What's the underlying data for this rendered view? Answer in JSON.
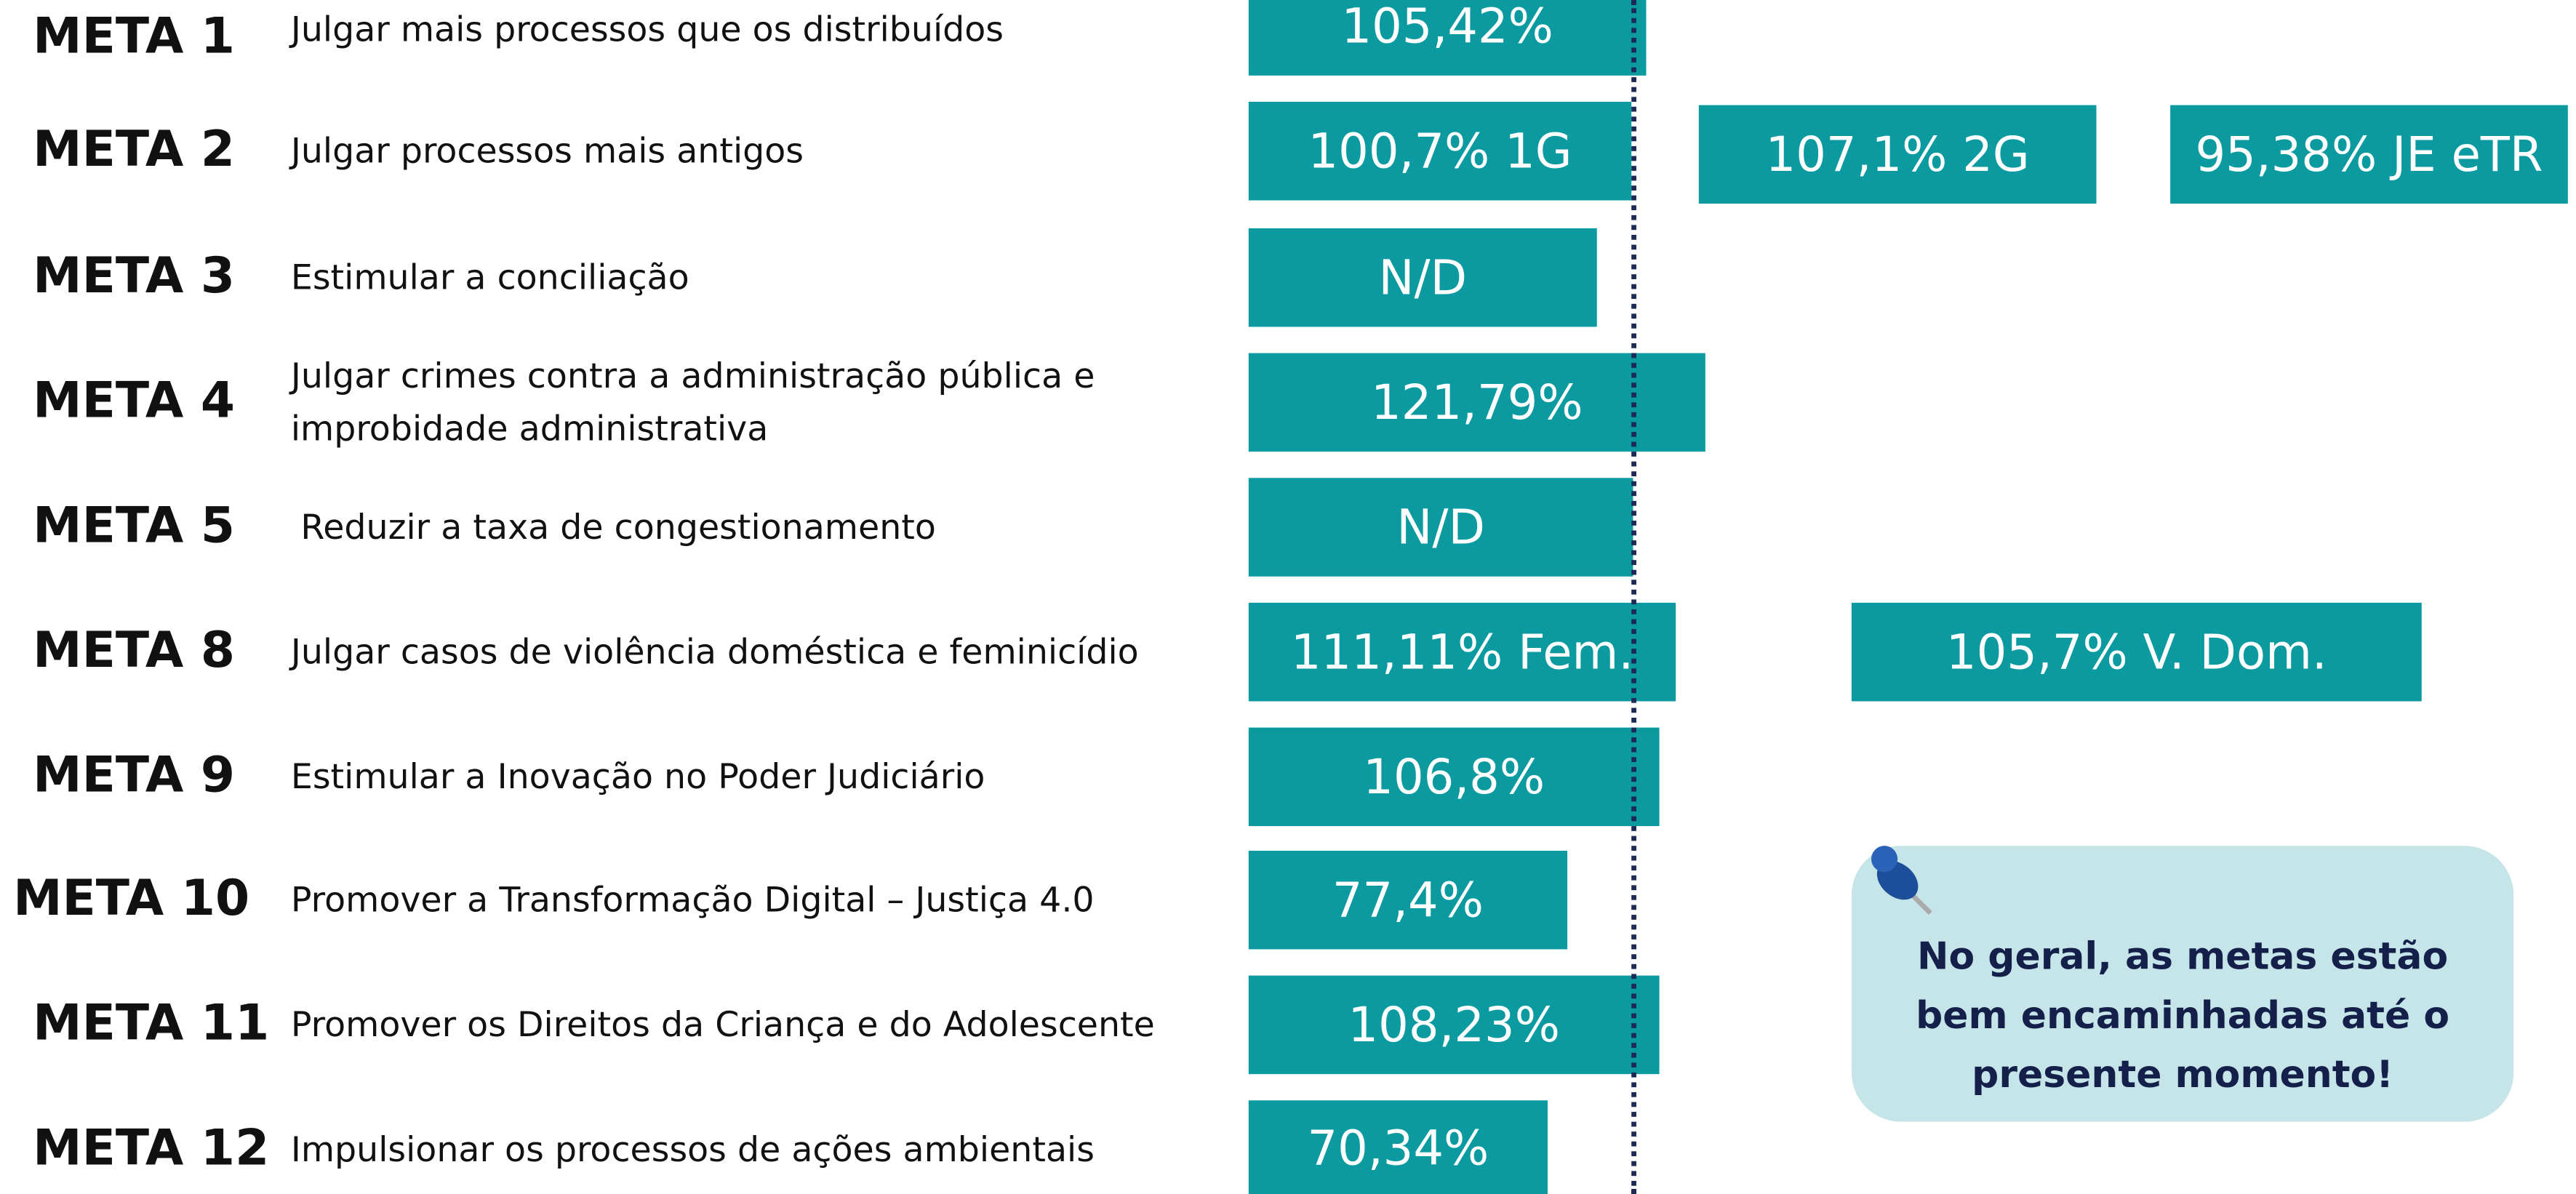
{
  "rows": [
    {
      "meta": "META 1",
      "description": "Julgar mais processos que os distribuídos",
      "badges": [
        "105,42%"
      ]
    },
    {
      "meta": "META 2",
      "description": "Julgar processos mais antigos",
      "badges": [
        "100,7% 1G",
        "107,1% 2G",
        "95,38% JE eTR"
      ]
    },
    {
      "meta": "META 3",
      "description": "Estimular a conciliação",
      "badges": [
        "N/D"
      ]
    },
    {
      "meta": "META 4",
      "description": "Julgar crimes contra a administração pública e improbidade administrativa",
      "badges": [
        "121,79%"
      ]
    },
    {
      "meta": "META 5",
      "description": "Reduzir a taxa de congestionamento",
      "badges": [
        "N/D"
      ]
    },
    {
      "meta": "META 8",
      "description": "Julgar casos de violência doméstica e feminicídio",
      "badges": [
        "111,11% Fem.",
        "105,7% V. Dom."
      ]
    },
    {
      "meta": "META 9",
      "description": "Estimular a Inovação no Poder Judiciário",
      "badges": [
        "106,8%"
      ]
    },
    {
      "meta": "META 10",
      "description": "Promover a Transformação Digital – Justiça 4.0",
      "badges": [
        "77,4%"
      ]
    },
    {
      "meta": "META 11",
      "description": "Promover os Direitos da Criança e do Adolescente",
      "badges": [
        "108,23%"
      ]
    },
    {
      "meta": "META 12",
      "description": "Impulsionar os processos de ações ambientais",
      "badges": [
        "70,34%"
      ]
    }
  ],
  "note": "No geral, as metas estão bem encaminhadas até o presente momento!"
}
